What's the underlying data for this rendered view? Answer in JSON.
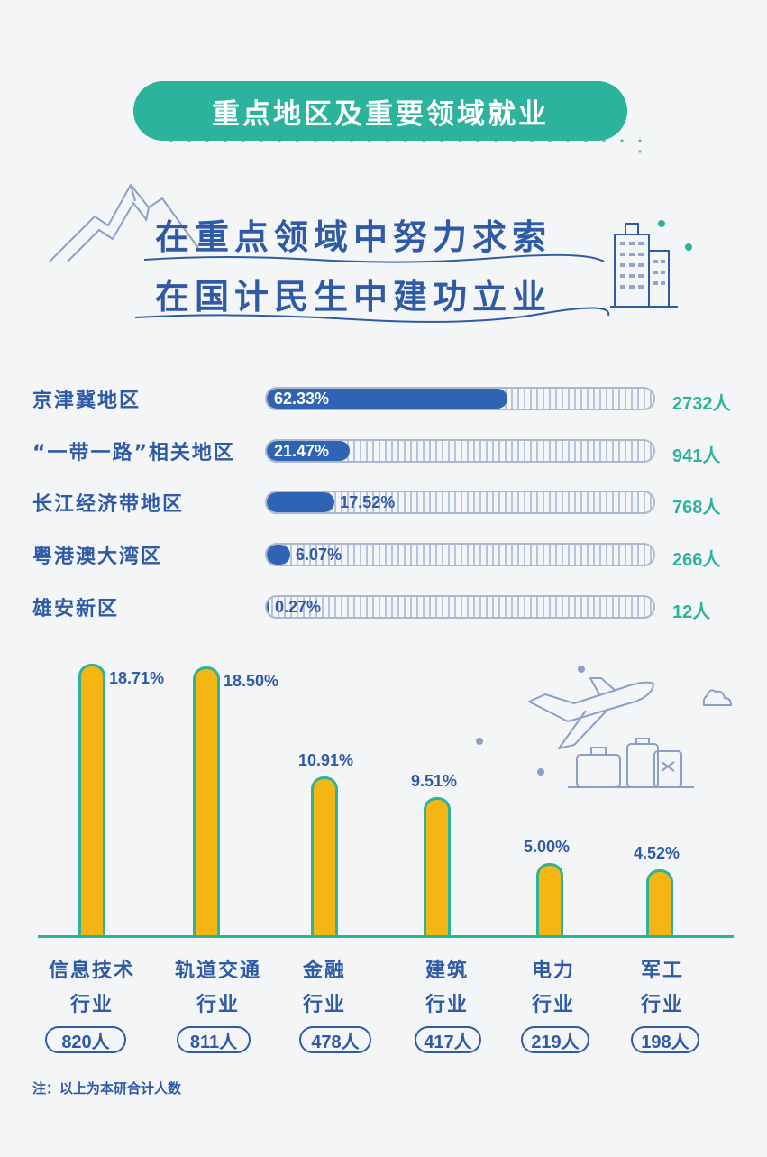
{
  "header": {
    "title": "重点地区及重要领域就业",
    "tagline_1": "在重点领域中努力求索",
    "tagline_2": "在国计民生中建功立业"
  },
  "chart_data": [
    {
      "type": "bar",
      "orientation": "horizontal",
      "categories": [
        "京津冀地区",
        "“一带一路”相关地区",
        "长江经济带地区",
        "粤港澳大湾区",
        "雄安新区"
      ],
      "values": [
        62.33,
        21.47,
        17.52,
        6.07,
        0.27
      ],
      "value_labels": [
        "62.33%",
        "21.47%",
        "17.52%",
        "6.07%",
        "0.27%"
      ],
      "counts": [
        "2732人",
        "941人",
        "768人",
        "266人",
        "12人"
      ],
      "xlim": [
        0,
        100
      ]
    },
    {
      "type": "bar",
      "orientation": "vertical",
      "categories": [
        "信息技术行业",
        "轨道交通行业",
        "金融行业",
        "建筑行业",
        "电力行业",
        "军工行业"
      ],
      "category_lines": [
        [
          "信息技术",
          "行业"
        ],
        [
          "轨道交通",
          "行业"
        ],
        [
          "金融",
          "行业"
        ],
        [
          "建筑",
          "行业"
        ],
        [
          "电力",
          "行业"
        ],
        [
          "军工",
          "行业"
        ]
      ],
      "values": [
        18.71,
        18.5,
        10.91,
        9.51,
        5.0,
        4.52
      ],
      "value_labels": [
        "18.71%",
        "18.50%",
        "10.91%",
        "9.51%",
        "5.00%",
        "4.52%"
      ],
      "counts": [
        "820人",
        "811人",
        "478人",
        "417人",
        "219人",
        "198人"
      ]
    }
  ],
  "note": "注：以上为本研合计人数",
  "colors": {
    "background": "#f4f5f7",
    "primary_blue": "#2f5aa6",
    "bar_blue": "#2f63b3",
    "teal": "#2bb39b",
    "yellow": "#f5b512"
  },
  "icons": [
    "mountain-sketch-icon",
    "building-icon",
    "airplane-icon",
    "luggage-icon",
    "cloud-icon"
  ]
}
